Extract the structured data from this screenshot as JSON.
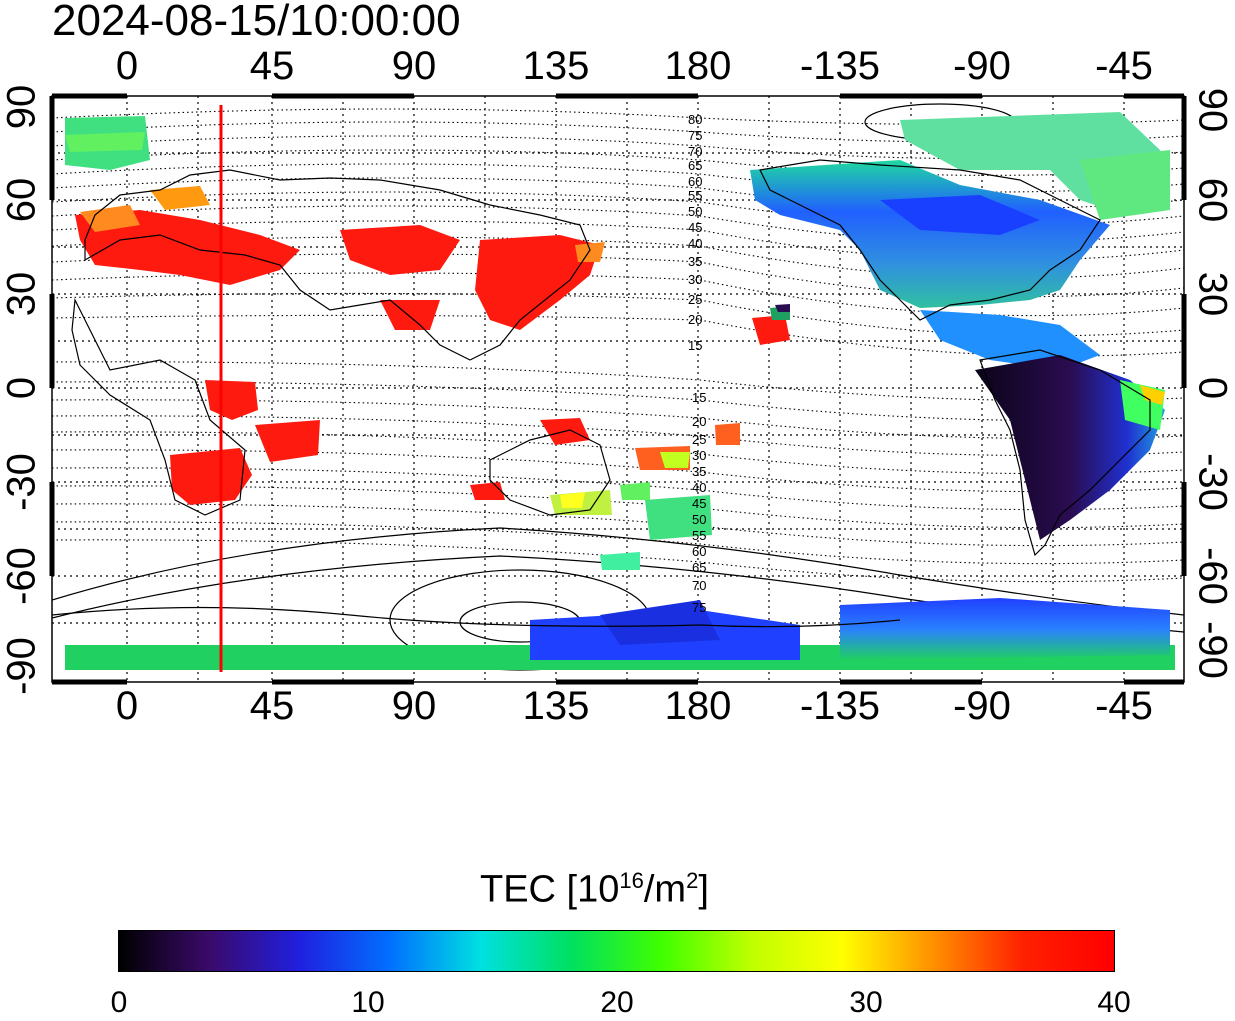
{
  "title": "2024-08-15/10:00:00",
  "axes": {
    "lon_top": [
      "0",
      "45",
      "90",
      "135",
      "180",
      "-135",
      "-90",
      "-45"
    ],
    "lon_bottom": [
      "0",
      "45",
      "90",
      "135",
      "180",
      "-135",
      "-90",
      "-45"
    ],
    "lat_left": [
      "90",
      "60",
      "30",
      "0",
      "-30",
      "-60",
      "-90"
    ],
    "lat_right": [
      "90",
      "60",
      "30",
      "0",
      "-30",
      "-60",
      "-90"
    ]
  },
  "contour_labels_north": [
    "80",
    "75",
    "70",
    "65",
    "60",
    "55",
    "50",
    "45",
    "40",
    "35",
    "30",
    "25",
    "20",
    "15"
  ],
  "contour_labels_south": [
    "15",
    "20",
    "25",
    "30",
    "35",
    "40",
    "45",
    "50",
    "55",
    "60",
    "65",
    "70",
    "75"
  ],
  "colorbar": {
    "title_main": "TEC  [10",
    "title_exp": "16",
    "title_unit": "/m",
    "title_exp2": "2",
    "title_end": "]",
    "min": 0,
    "max": 40,
    "labels": [
      "0",
      "10",
      "20",
      "30",
      "40"
    ],
    "colors": [
      "#000000",
      "#3a0a6a",
      "#2020e0",
      "#0070ff",
      "#00e0e0",
      "#00e060",
      "#40ff00",
      "#c0ff00",
      "#ffff00",
      "#ff9000",
      "#ff2000",
      "#ff0000"
    ]
  },
  "sun_marker_color": "#ff0000",
  "regions": {
    "europe_africa_asia": "#ff1a10",
    "north_america": "#0050ff",
    "south_america": "#1a0830",
    "antarctic_belt": "#20c040",
    "arctic": "#40e080"
  }
}
